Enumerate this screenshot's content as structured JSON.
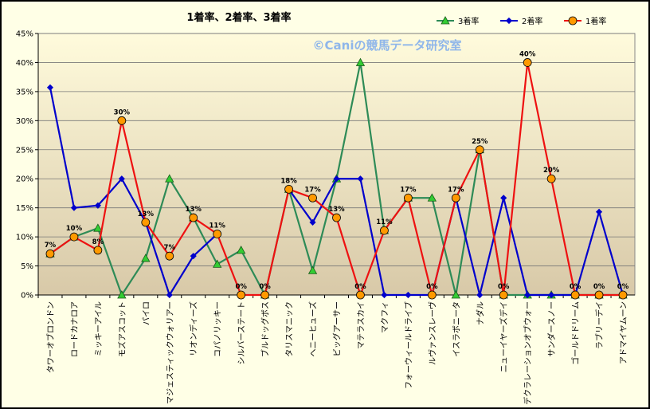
{
  "chart_data": {
    "type": "line",
    "title": "1着率、2着率、3着率",
    "watermark": "©Caniの競馬データ研究室",
    "ylim": [
      0,
      45
    ],
    "yticks": [
      "0%",
      "5%",
      "10%",
      "15%",
      "20%",
      "25%",
      "30%",
      "35%",
      "40%",
      "45%"
    ],
    "grid": "horizontal",
    "legend_position": "top-right",
    "categories": [
      "タワーオブロンドン",
      "ロードカナロア",
      "ミッキーアイル",
      "モズアスコット",
      "パイロ",
      "マジェスティックウォリアー",
      "リオンディーズ",
      "コパノリッキー",
      "シルバーステート",
      "ブルドッグボス",
      "タリスマニック",
      "ヘニーヒューズ",
      "ビッグアーサー",
      "マテラスカイ",
      "マクフィ",
      "フォーウィールドライブ",
      "ルヴァンスレーヴ",
      "イスラボニータ",
      "ナダル",
      "ニューイヤーズデイ",
      "デクラレーションオブウォー",
      "サンダースノー",
      "ゴールドドリーム",
      "ラブリーデイ",
      "アドマイヤムーン"
    ],
    "series": [
      {
        "name": "3着率",
        "color": "#2e8b57",
        "marker": "triangle",
        "marker_fill": "#33cc33",
        "values": [
          7.1,
          10,
          11.5,
          0,
          6.3,
          20,
          13.3,
          5.3,
          7.7,
          0,
          18.2,
          4.2,
          20,
          40,
          11.1,
          16.7,
          16.7,
          0,
          25,
          0,
          0,
          0,
          0,
          0,
          0
        ]
      },
      {
        "name": "2着率",
        "color": "#0000cc",
        "marker": "diamond",
        "marker_fill": "#0000cc",
        "values": [
          35.7,
          15,
          15.4,
          20,
          12.5,
          0,
          6.7,
          10.5,
          null,
          null,
          18.2,
          12.5,
          20,
          20,
          0,
          0,
          0,
          16.7,
          0,
          16.7,
          0,
          0,
          0,
          14.3,
          0
        ]
      },
      {
        "name": "1着率",
        "color": "#ee1111",
        "marker": "circle",
        "marker_fill": "#ff9900",
        "values": [
          7.1,
          10,
          7.7,
          30,
          12.5,
          6.7,
          13.3,
          10.5,
          0,
          0,
          18.2,
          16.7,
          13.3,
          0,
          11.1,
          16.7,
          0,
          16.7,
          25,
          0,
          40,
          20,
          0,
          0,
          0
        ]
      }
    ],
    "data_labels": [
      "7%",
      "10%",
      "8%",
      "30%",
      "13%",
      "7%",
      "13%",
      "11%",
      "0%",
      "0%",
      "18%",
      "17%",
      "13%",
      "0%",
      "11%",
      "17%",
      "0%",
      "17%",
      "25%",
      "0%",
      "40%",
      "20%",
      "0%",
      "0%",
      "0%"
    ]
  }
}
